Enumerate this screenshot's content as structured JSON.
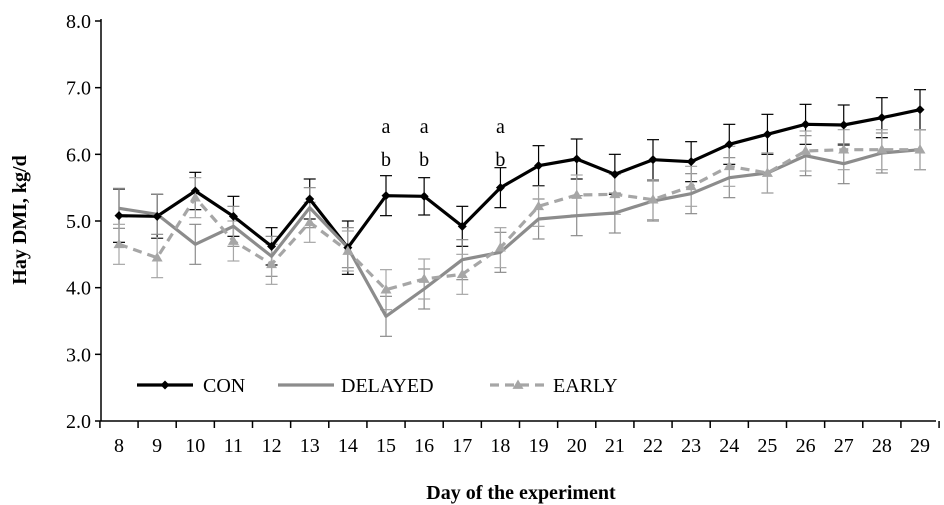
{
  "chart_data": {
    "type": "line",
    "title": "",
    "xlabel": "Day of the experiment",
    "ylabel": "Hay DMI, kg/d",
    "ylim": [
      2.0,
      8.0
    ],
    "y_ticks": [
      "2.0",
      "3.0",
      "4.0",
      "5.0",
      "6.0",
      "7.0",
      "8.0"
    ],
    "categories": [
      "8",
      "9",
      "10",
      "11",
      "12",
      "13",
      "14",
      "15",
      "16",
      "17",
      "18",
      "19",
      "20",
      "21",
      "22",
      "23",
      "24",
      "25",
      "26",
      "27",
      "28",
      "29"
    ],
    "grid": false,
    "legend_position": "bottom-left",
    "series": [
      {
        "name": "CON",
        "color": "#000000",
        "style": "solid",
        "marker": "diamond",
        "values": [
          5.08,
          5.07,
          5.45,
          5.07,
          4.62,
          5.33,
          4.6,
          5.38,
          5.37,
          4.92,
          5.5,
          5.83,
          5.93,
          5.7,
          5.92,
          5.89,
          6.15,
          6.3,
          6.45,
          6.44,
          6.55,
          6.67
        ],
        "errors": [
          0.4,
          0.33,
          0.28,
          0.3,
          0.28,
          0.3,
          0.4,
          0.3,
          0.28,
          0.3,
          0.3,
          0.3,
          0.3,
          0.3,
          0.3,
          0.3,
          0.3,
          0.3,
          0.3,
          0.3,
          0.3,
          0.3
        ]
      },
      {
        "name": "DELAYED",
        "color": "#8c8c8c",
        "style": "solid",
        "marker": "none",
        "values": [
          5.19,
          5.1,
          4.65,
          4.92,
          4.47,
          5.2,
          4.6,
          3.57,
          3.98,
          4.42,
          4.53,
          5.03,
          5.08,
          5.12,
          5.3,
          5.41,
          5.65,
          5.72,
          5.98,
          5.86,
          6.02,
          6.07
        ],
        "errors": [
          0.3,
          0.3,
          0.3,
          0.3,
          0.3,
          0.3,
          0.3,
          0.3,
          0.3,
          0.3,
          0.3,
          0.3,
          0.3,
          0.3,
          0.3,
          0.3,
          0.3,
          0.3,
          0.3,
          0.3,
          0.3,
          0.3
        ]
      },
      {
        "name": "EARLY",
        "color": "#a6a6a6",
        "style": "dashed",
        "marker": "triangle",
        "values": [
          4.65,
          4.45,
          5.35,
          4.7,
          4.35,
          4.98,
          4.55,
          3.97,
          4.13,
          4.2,
          4.6,
          5.22,
          5.39,
          5.4,
          5.32,
          5.52,
          5.82,
          5.72,
          6.05,
          6.07,
          6.07,
          6.07
        ],
        "errors": [
          0.3,
          0.3,
          0.3,
          0.3,
          0.3,
          0.3,
          0.3,
          0.3,
          0.3,
          0.3,
          0.3,
          0.3,
          0.3,
          0.3,
          0.3,
          0.3,
          0.3,
          0.3,
          0.3,
          0.3,
          0.3,
          0.3
        ]
      }
    ],
    "annotations": [
      {
        "category": "15",
        "upper": "a",
        "lower": "b"
      },
      {
        "category": "16",
        "upper": "a",
        "lower": "b"
      },
      {
        "category": "18",
        "upper": "a",
        "lower": "b"
      }
    ]
  }
}
